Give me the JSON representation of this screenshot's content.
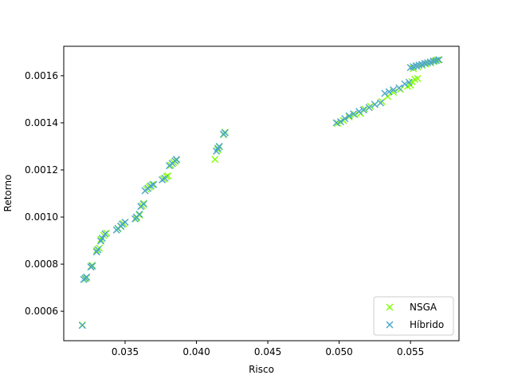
{
  "chart_data": {
    "type": "scatter",
    "xlabel": "Risco",
    "ylabel": "Retorno",
    "xlim": [
      0.0307,
      0.0584
    ],
    "ylim": [
      0.000475,
      0.001725
    ],
    "xticks": [
      0.035,
      0.04,
      0.045,
      0.05,
      0.055
    ],
    "xtick_labels": [
      "0.035",
      "0.040",
      "0.045",
      "0.050",
      "0.055"
    ],
    "yticks": [
      0.0006,
      0.0008,
      0.001,
      0.0012,
      0.0014,
      0.0016
    ],
    "ytick_labels": [
      "0.0006",
      "0.0008",
      "0.0010",
      "0.0012",
      "0.0014",
      "0.0016"
    ],
    "legend_position": "lower-right",
    "marker": "x",
    "series": [
      {
        "name": "NSGA",
        "color": "#7fff00",
        "points": [
          [
            0.032,
            0.000542
          ],
          [
            0.0322,
            0.000738
          ],
          [
            0.0323,
            0.000742
          ],
          [
            0.0326,
            0.00079
          ],
          [
            0.0327,
            0.000795
          ],
          [
            0.033,
            0.000858
          ],
          [
            0.0332,
            0.000868
          ],
          [
            0.0333,
            0.000905
          ],
          [
            0.0335,
            0.000922
          ],
          [
            0.0337,
            0.000932
          ],
          [
            0.0345,
            0.00095
          ],
          [
            0.0347,
            0.00096
          ],
          [
            0.0349,
            0.000972
          ],
          [
            0.0358,
            0.000995
          ],
          [
            0.036,
            0.001008
          ],
          [
            0.0362,
            0.001048
          ],
          [
            0.0363,
            0.001058
          ],
          [
            0.0365,
            0.001118
          ],
          [
            0.0367,
            0.001128
          ],
          [
            0.0369,
            0.001138
          ],
          [
            0.0377,
            0.001162
          ],
          [
            0.0379,
            0.001172
          ],
          [
            0.038,
            0.001175
          ],
          [
            0.0382,
            0.00122
          ],
          [
            0.0384,
            0.001232
          ],
          [
            0.0386,
            0.001242
          ],
          [
            0.0413,
            0.001245
          ],
          [
            0.0415,
            0.001285
          ],
          [
            0.0416,
            0.001298
          ],
          [
            0.0419,
            0.00135
          ],
          [
            0.042,
            0.00136
          ],
          [
            0.0499,
            0.001398
          ],
          [
            0.0503,
            0.00141
          ],
          [
            0.0507,
            0.001425
          ],
          [
            0.0511,
            0.001435
          ],
          [
            0.0515,
            0.00144
          ],
          [
            0.0518,
            0.001458
          ],
          [
            0.0522,
            0.00147
          ],
          [
            0.0525,
            0.001478
          ],
          [
            0.053,
            0.00149
          ],
          [
            0.0534,
            0.001512
          ],
          [
            0.0538,
            0.00153
          ],
          [
            0.0543,
            0.001542
          ],
          [
            0.0548,
            0.001555
          ],
          [
            0.055,
            0.00156
          ],
          [
            0.0551,
            0.001575
          ],
          [
            0.0553,
            0.001585
          ],
          [
            0.0555,
            0.001588
          ],
          [
            0.0552,
            0.00163
          ],
          [
            0.0555,
            0.001638
          ],
          [
            0.0558,
            0.001645
          ],
          [
            0.0561,
            0.00165
          ],
          [
            0.0564,
            0.001655
          ],
          [
            0.0567,
            0.001662
          ],
          [
            0.0569,
            0.001667
          ]
        ]
      },
      {
        "name": "Híbrido",
        "color": "#4aa5c8",
        "points": [
          [
            0.032,
            0.00054
          ],
          [
            0.0321,
            0.000735
          ],
          [
            0.0322,
            0.00074
          ],
          [
            0.0323,
            0.000745
          ],
          [
            0.0326,
            0.000788
          ],
          [
            0.0327,
            0.000792
          ],
          [
            0.033,
            0.000852
          ],
          [
            0.0331,
            0.000862
          ],
          [
            0.0333,
            0.000898
          ],
          [
            0.0334,
            0.00091
          ],
          [
            0.0336,
            0.000928
          ],
          [
            0.0344,
            0.000945
          ],
          [
            0.0345,
            0.000952
          ],
          [
            0.0347,
            0.000962
          ],
          [
            0.0348,
            0.00097
          ],
          [
            0.035,
            0.000978
          ],
          [
            0.0357,
            0.000992
          ],
          [
            0.0358,
            0.001
          ],
          [
            0.036,
            0.001012
          ],
          [
            0.0361,
            0.001045
          ],
          [
            0.0363,
            0.001055
          ],
          [
            0.0364,
            0.001112
          ],
          [
            0.0366,
            0.001122
          ],
          [
            0.0368,
            0.001132
          ],
          [
            0.037,
            0.001138
          ],
          [
            0.0376,
            0.001158
          ],
          [
            0.0378,
            0.001165
          ],
          [
            0.0381,
            0.001218
          ],
          [
            0.0383,
            0.001228
          ],
          [
            0.0385,
            0.001238
          ],
          [
            0.0386,
            0.001245
          ],
          [
            0.0414,
            0.00128
          ],
          [
            0.0415,
            0.001292
          ],
          [
            0.0416,
            0.0013
          ],
          [
            0.0419,
            0.001352
          ],
          [
            0.042,
            0.001358
          ],
          [
            0.0498,
            0.0014
          ],
          [
            0.0501,
            0.001405
          ],
          [
            0.0504,
            0.001418
          ],
          [
            0.0507,
            0.00143
          ],
          [
            0.051,
            0.001438
          ],
          [
            0.0514,
            0.001448
          ],
          [
            0.0517,
            0.001455
          ],
          [
            0.0521,
            0.001465
          ],
          [
            0.0525,
            0.001478
          ],
          [
            0.0529,
            0.001485
          ],
          [
            0.0532,
            0.001525
          ],
          [
            0.0535,
            0.001532
          ],
          [
            0.0538,
            0.00154
          ],
          [
            0.0542,
            0.001548
          ],
          [
            0.0546,
            0.001565
          ],
          [
            0.0549,
            0.001572
          ],
          [
            0.055,
            0.001635
          ],
          [
            0.0552,
            0.001638
          ],
          [
            0.0554,
            0.001642
          ],
          [
            0.0556,
            0.001645
          ],
          [
            0.0558,
            0.001648
          ],
          [
            0.056,
            0.001652
          ],
          [
            0.0562,
            0.001655
          ],
          [
            0.0564,
            0.001658
          ],
          [
            0.0566,
            0.001662
          ],
          [
            0.0568,
            0.001665
          ],
          [
            0.057,
            0.001668
          ]
        ]
      }
    ]
  }
}
